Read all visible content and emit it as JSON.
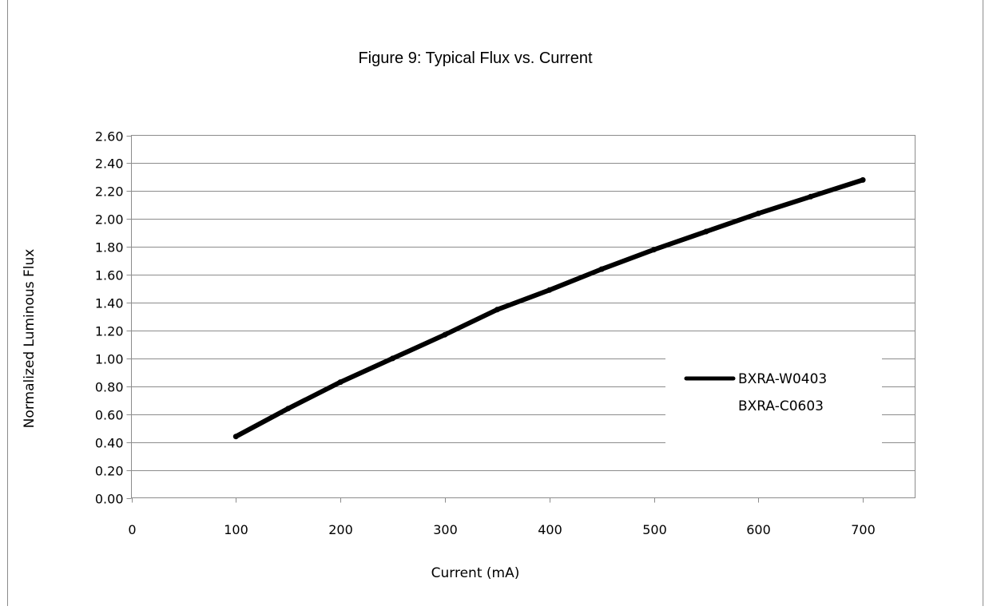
{
  "chart_data": {
    "type": "line",
    "title": "Figure 9:  Typical Flux vs. Current",
    "xlabel": "Current (mA)",
    "ylabel": "Normalized Luminous Flux",
    "xlim": [
      0,
      750
    ],
    "ylim": [
      0,
      2.6
    ],
    "x_ticks": [
      "0",
      "100",
      "200",
      "300",
      "400",
      "500",
      "600",
      "700"
    ],
    "y_ticks": [
      "0.00",
      "0.20",
      "0.40",
      "0.60",
      "0.80",
      "1.00",
      "1.20",
      "1.40",
      "1.60",
      "1.80",
      "2.00",
      "2.20",
      "2.40",
      "2.60"
    ],
    "grid": "horizontal",
    "legend_position": "right",
    "legend": [
      "BXRA-W0403",
      "BXRA-C0603"
    ],
    "series": [
      {
        "name": "BXRA-W0403",
        "color": "#000000",
        "x": [
          100,
          150,
          200,
          250,
          300,
          350,
          400,
          450,
          500,
          550,
          600,
          650,
          700
        ],
        "y": [
          0.44,
          0.64,
          0.83,
          1.0,
          1.17,
          1.35,
          1.49,
          1.64,
          1.78,
          1.91,
          2.04,
          2.16,
          2.28
        ]
      }
    ]
  }
}
